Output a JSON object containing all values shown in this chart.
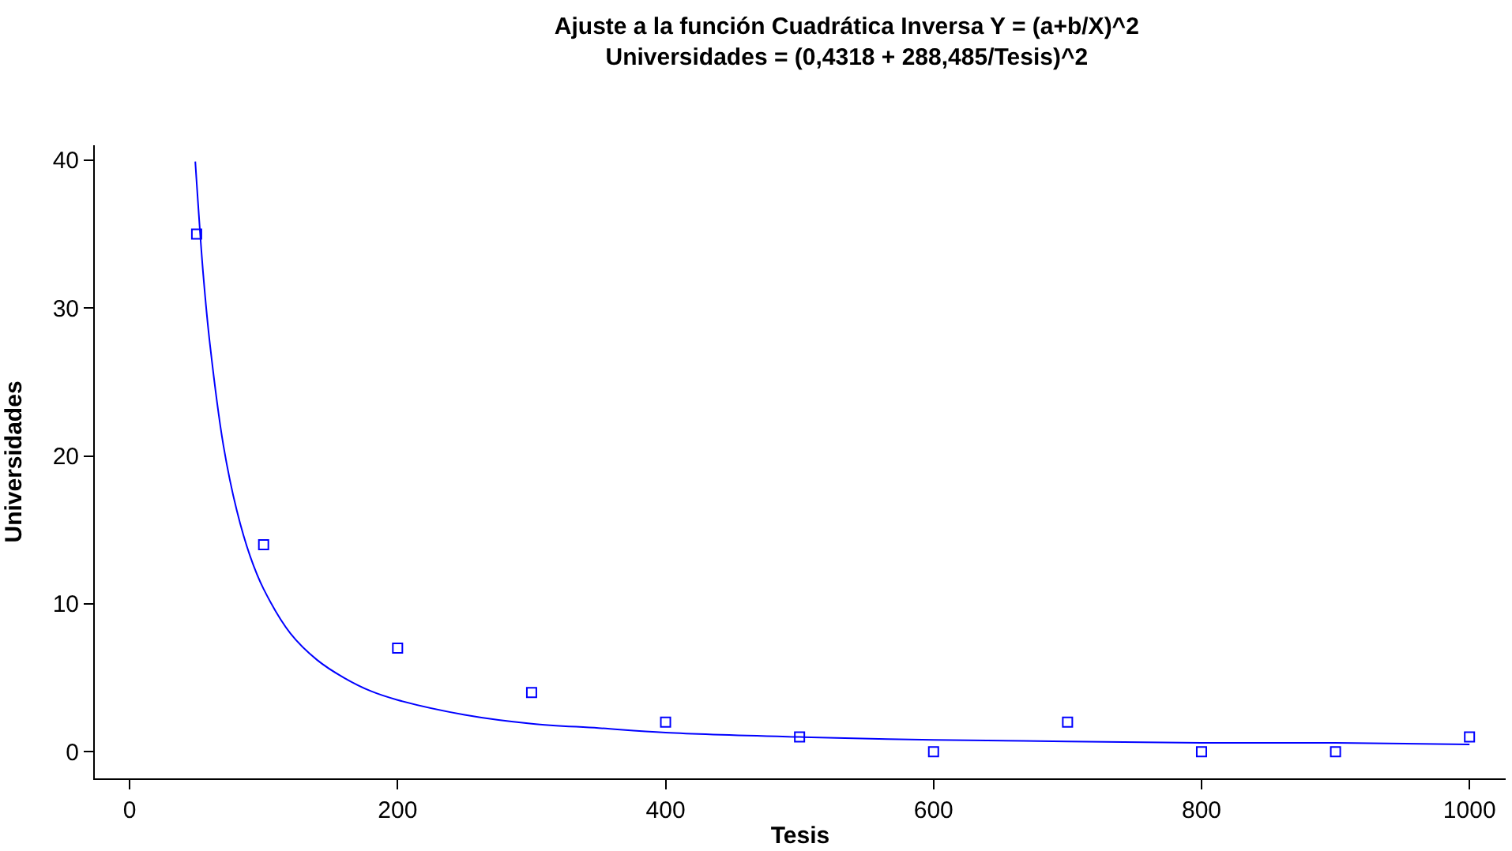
{
  "chart_data": {
    "type": "scatter",
    "title": "Ajuste a la función Cuadrática Inversa Y = (a+b/X)^2",
    "subtitle": "Universidades = (0,4318 + 288,485/Tesis)^2",
    "xlabel": "Tesis",
    "ylabel": "Universidades",
    "xlim": [
      -26,
      1027
    ],
    "ylim": [
      -1.8,
      41
    ],
    "xticks": [
      0,
      200,
      400,
      600,
      800,
      1000
    ],
    "yticks": [
      0,
      10,
      20,
      30,
      40
    ],
    "marker": "square",
    "series": [
      {
        "color": "#0000ff",
        "x": [
          50,
          100,
          200,
          300,
          400,
          500,
          600,
          700,
          800,
          900,
          1000
        ],
        "values": [
          35,
          14,
          7,
          4,
          2,
          1,
          0,
          2,
          0,
          0,
          1
        ]
      },
      {
        "type": "line",
        "color": "#0000ff",
        "marker": "none",
        "line_style": "solid",
        "x": [
          49,
          55,
          60,
          70,
          80,
          90,
          100,
          120,
          140,
          160,
          180,
          200,
          250,
          300,
          350,
          400,
          500,
          600,
          700,
          800,
          900,
          1000
        ],
        "values": [
          39.9,
          32.2,
          27.5,
          20.7,
          16.3,
          13.2,
          11.0,
          8.0,
          6.2,
          5.0,
          4.1,
          3.5,
          2.5,
          1.9,
          1.6,
          1.3,
          1.0,
          0.8,
          0.7,
          0.6,
          0.6,
          0.5
        ]
      }
    ]
  }
}
